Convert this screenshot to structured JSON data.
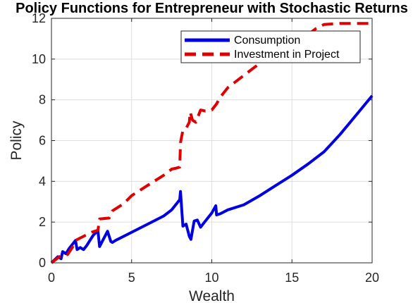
{
  "chart_data": {
    "type": "line",
    "title": "Policy Functions for Entrepreneur with Stochastic Returns",
    "xlabel": "Wealth",
    "ylabel": "Policy",
    "xlim": [
      0,
      20
    ],
    "ylim": [
      0,
      12
    ],
    "xticks": [
      "0",
      "5",
      "10",
      "15",
      "20"
    ],
    "yticks": [
      "0",
      "2",
      "4",
      "6",
      "8",
      "10",
      "12"
    ],
    "grid": true,
    "legend_position": "top-right",
    "series": [
      {
        "name": "Consumption",
        "color": "#0000e0",
        "style": "solid",
        "x": [
          0.0,
          0.2,
          0.4,
          0.6,
          0.7,
          0.9,
          1.1,
          1.3,
          1.5,
          1.6,
          1.8,
          2.0,
          2.2,
          2.4,
          2.6,
          2.8,
          2.9,
          3.0,
          3.2,
          3.5,
          3.7,
          3.8,
          4.0,
          5.0,
          6.0,
          7.0,
          7.5,
          7.8,
          8.0,
          8.05,
          8.2,
          8.4,
          8.6,
          8.7,
          8.9,
          9.1,
          9.3,
          9.6,
          10.0,
          10.25,
          10.3,
          10.5,
          11.0,
          12.0,
          13.0,
          14.0,
          15.0,
          16.0,
          17.0,
          18.0,
          19.0,
          20.0
        ],
        "y": [
          0.0,
          0.15,
          0.3,
          0.2,
          0.55,
          0.45,
          0.7,
          0.9,
          1.1,
          0.65,
          0.75,
          0.65,
          0.85,
          1.1,
          1.35,
          1.5,
          1.55,
          0.8,
          1.1,
          1.55,
          1.05,
          1.0,
          1.1,
          1.5,
          1.9,
          2.3,
          2.6,
          2.9,
          3.1,
          3.5,
          1.8,
          1.9,
          1.3,
          1.15,
          2.05,
          2.1,
          1.75,
          2.05,
          2.45,
          2.8,
          2.35,
          2.4,
          2.6,
          2.85,
          3.3,
          3.8,
          4.3,
          4.85,
          5.45,
          6.3,
          7.25,
          8.2
        ]
      },
      {
        "name": "Investment in Project",
        "color": "#e00000",
        "style": "dashed",
        "x": [
          0.0,
          0.5,
          0.6,
          0.8,
          1.0,
          1.3,
          1.5,
          2.0,
          2.5,
          2.9,
          3.0,
          3.6,
          3.8,
          4.5,
          5.0,
          6.0,
          7.0,
          7.5,
          7.8,
          8.0,
          8.05,
          8.2,
          8.4,
          8.6,
          8.65,
          8.8,
          9.0,
          9.3,
          9.6,
          10.0,
          10.3,
          10.5,
          11.0,
          12.0,
          13.0,
          14.0,
          15.0,
          16.0,
          16.5,
          17.0,
          18.0,
          19.0,
          20.0
        ],
        "y": [
          0.0,
          0.3,
          0.35,
          0.4,
          0.4,
          0.75,
          1.1,
          1.3,
          1.5,
          1.6,
          2.15,
          2.2,
          2.55,
          2.9,
          3.3,
          3.8,
          4.3,
          4.6,
          4.65,
          4.7,
          5.9,
          6.5,
          6.6,
          6.9,
          7.4,
          7.0,
          6.9,
          7.5,
          7.45,
          7.5,
          7.8,
          8.1,
          8.6,
          9.2,
          9.8,
          10.3,
          10.8,
          11.2,
          11.5,
          11.7,
          11.75,
          11.75,
          11.75
        ]
      }
    ]
  }
}
